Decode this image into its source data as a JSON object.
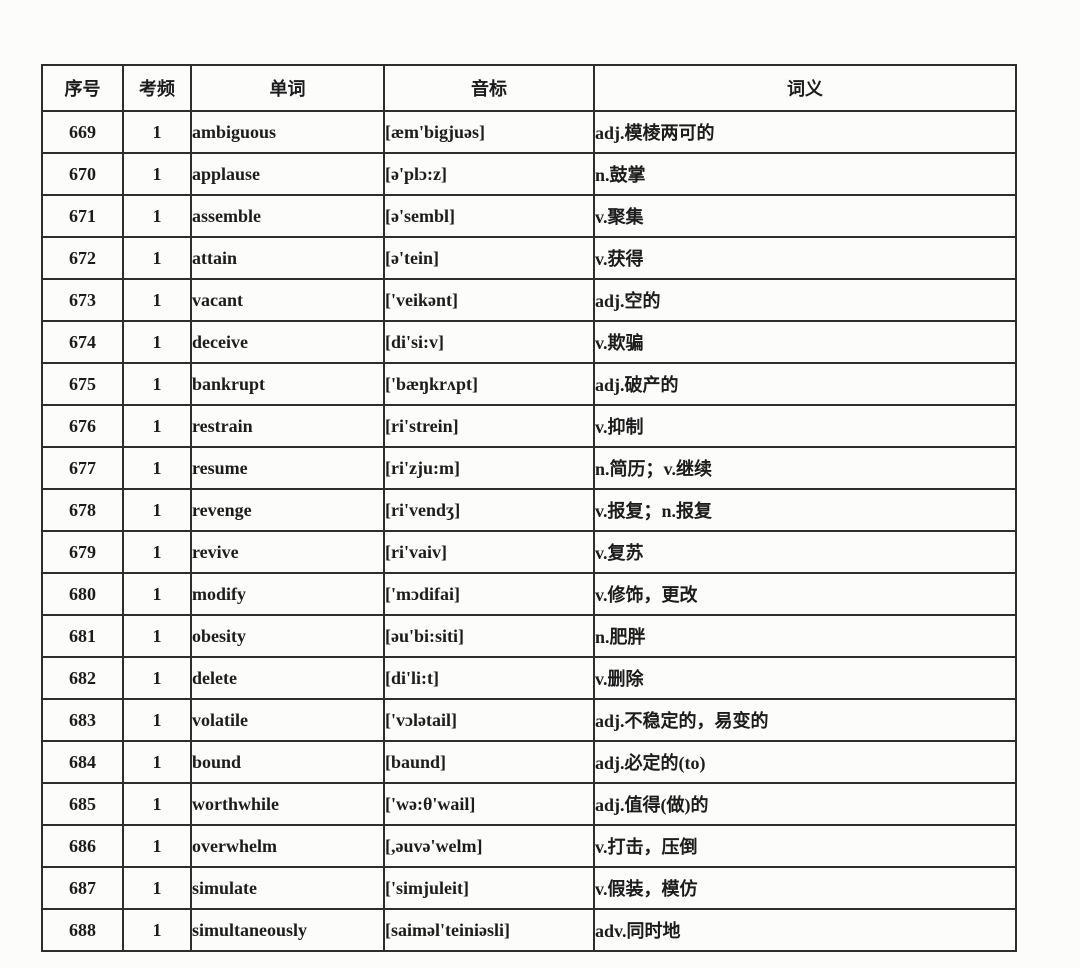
{
  "table": {
    "headers": [
      "序号",
      "考频",
      "单词",
      "音标",
      "词义"
    ],
    "rows": [
      {
        "no": "669",
        "freq": "1",
        "word": "ambiguous",
        "phonetic": "[æm'bigjuəs]",
        "meaning": "adj.模棱两可的"
      },
      {
        "no": "670",
        "freq": "1",
        "word": "applause",
        "phonetic": "[ə'plɔ:z]",
        "meaning": "n.鼓掌"
      },
      {
        "no": "671",
        "freq": "1",
        "word": "assemble",
        "phonetic": "[ə'sembl]",
        "meaning": "v.聚集"
      },
      {
        "no": "672",
        "freq": "1",
        "word": "attain",
        "phonetic": "[ə'tein]",
        "meaning": "v.获得"
      },
      {
        "no": "673",
        "freq": "1",
        "word": "vacant",
        "phonetic": "['veikənt]",
        "meaning": "adj.空的"
      },
      {
        "no": "674",
        "freq": "1",
        "word": "deceive",
        "phonetic": "[di'si:v]",
        "meaning": "v.欺骗"
      },
      {
        "no": "675",
        "freq": "1",
        "word": "bankrupt",
        "phonetic": "['bæŋkrʌpt]",
        "meaning": "adj.破产的"
      },
      {
        "no": "676",
        "freq": "1",
        "word": "restrain",
        "phonetic": "[ri'strein]",
        "meaning": "v.抑制"
      },
      {
        "no": "677",
        "freq": "1",
        "word": "resume",
        "phonetic": "[ri'zju:m]",
        "meaning": "n.简历；v.继续"
      },
      {
        "no": "678",
        "freq": "1",
        "word": "revenge",
        "phonetic": "[ri'vendʒ]",
        "meaning": "v.报复；n.报复"
      },
      {
        "no": "679",
        "freq": "1",
        "word": "revive",
        "phonetic": "[ri'vaiv]",
        "meaning": "v.复苏"
      },
      {
        "no": "680",
        "freq": "1",
        "word": "modify",
        "phonetic": "['mɔdifai]",
        "meaning": "v.修饰，更改"
      },
      {
        "no": "681",
        "freq": "1",
        "word": "obesity",
        "phonetic": "[əu'bi:siti]",
        "meaning": "n.肥胖"
      },
      {
        "no": "682",
        "freq": "1",
        "word": "delete",
        "phonetic": "[di'li:t]",
        "meaning": "v.删除"
      },
      {
        "no": "683",
        "freq": "1",
        "word": "volatile",
        "phonetic": "['vɔlətail]",
        "meaning": "adj.不稳定的，易变的"
      },
      {
        "no": "684",
        "freq": "1",
        "word": "bound",
        "phonetic": "[baund]",
        "meaning": "adj.必定的(to)"
      },
      {
        "no": "685",
        "freq": "1",
        "word": "worthwhile",
        "phonetic": "['wə:θ'wail]",
        "meaning": "adj.值得(做)的"
      },
      {
        "no": "686",
        "freq": "1",
        "word": "overwhelm",
        "phonetic": "[,əuvə'welm]",
        "meaning": "v.打击，压倒"
      },
      {
        "no": "687",
        "freq": "1",
        "word": "simulate",
        "phonetic": "['simjuleit]",
        "meaning": "v.假装，模仿"
      },
      {
        "no": "688",
        "freq": "1",
        "word": "simultaneously",
        "phonetic": "[saiməl'teiniəsli]",
        "meaning": "adv.同时地"
      }
    ]
  }
}
